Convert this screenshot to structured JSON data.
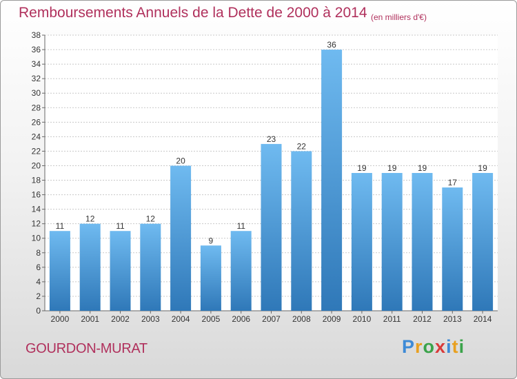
{
  "title": "Remboursements Annuels de la Dette de 2000 à 2014",
  "subtitle": "(en milliers d'€)",
  "footer": {
    "commune": "GOURDON-MURAT"
  },
  "logo": {
    "letters": [
      "P",
      "r",
      "o",
      "x",
      "i",
      "t",
      "i"
    ],
    "colors": [
      "#3d8ad6",
      "#e8a020",
      "#3aa34a",
      "#d83a3a",
      "#3d8ad6",
      "#e8a020",
      "#3aa34a"
    ]
  },
  "colors": {
    "bar_top": "#6fbaf0",
    "bar_bottom": "#2f78b8",
    "title": "#b0305c",
    "grid": "#c8c8c8"
  },
  "chart_data": {
    "type": "bar",
    "title": "Remboursements Annuels de la Dette de 2000 à 2014",
    "categories": [
      "2000",
      "2001",
      "2002",
      "2003",
      "2004",
      "2005",
      "2006",
      "2007",
      "2008",
      "2009",
      "2010",
      "2011",
      "2012",
      "2013",
      "2014"
    ],
    "values": [
      11,
      12,
      11,
      12,
      20,
      9,
      11,
      23,
      22,
      36,
      19,
      19,
      19,
      17,
      19
    ],
    "ylim": [
      0,
      38
    ],
    "yticks": [
      0,
      2,
      4,
      6,
      8,
      10,
      12,
      14,
      16,
      18,
      20,
      22,
      24,
      26,
      28,
      30,
      32,
      34,
      36,
      38
    ],
    "grid": true,
    "xlabel": "",
    "ylabel": ""
  }
}
